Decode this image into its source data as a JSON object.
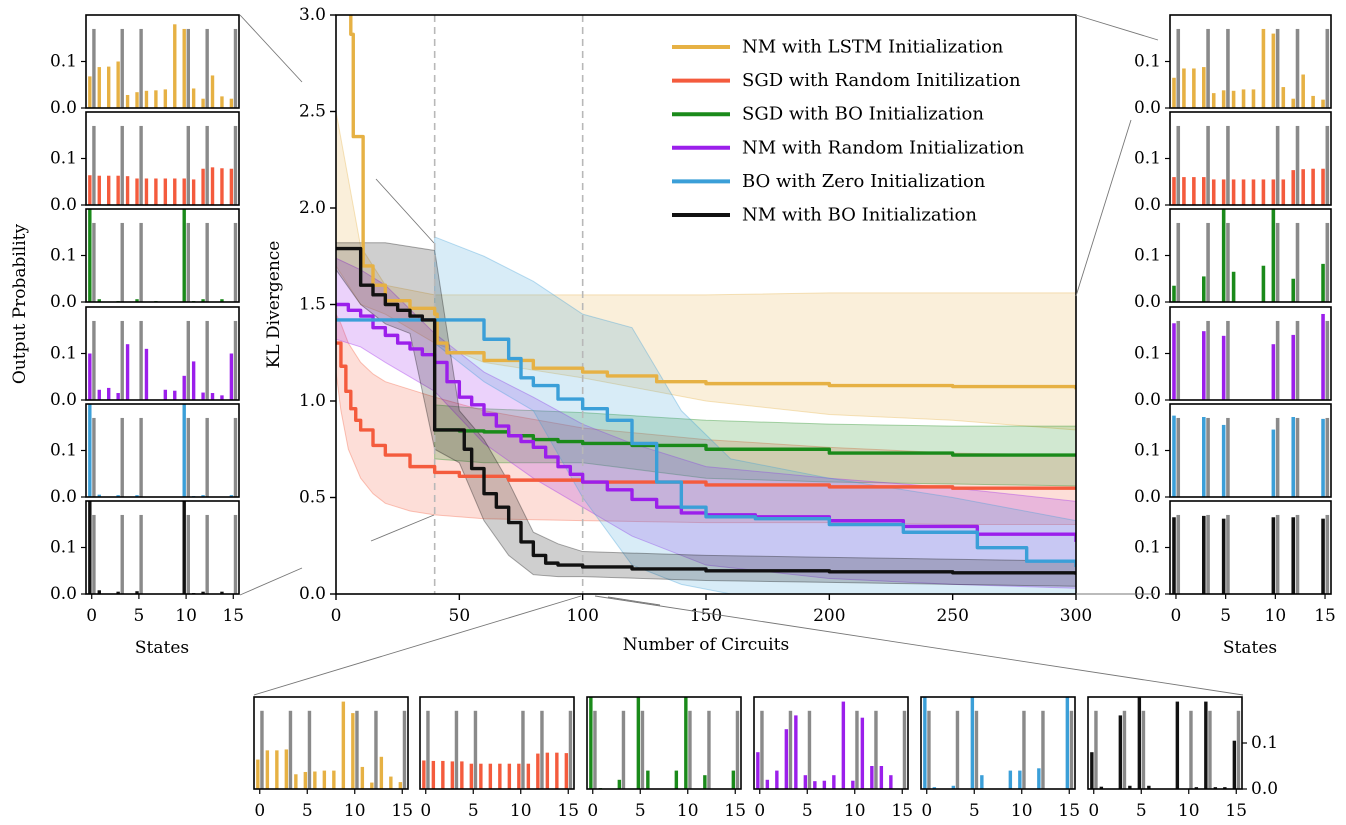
{
  "chart_data": [
    {
      "type": "line",
      "panel": "main",
      "xlabel": "Number of Circuits",
      "ylabel": "KL Divergence",
      "xlim": [
        0,
        300
      ],
      "ylim": [
        0,
        3.0
      ],
      "xticks": [
        "0",
        "50",
        "100",
        "150",
        "200",
        "250",
        "300"
      ],
      "yticks": [
        "0.0",
        "0.5",
        "1.0",
        "1.5",
        "2.0",
        "2.5",
        "3.0"
      ],
      "xtick_values": [
        0,
        50,
        100,
        150,
        200,
        250,
        300
      ],
      "ytick_values": [
        0,
        0.5,
        1.0,
        1.5,
        2.0,
        2.5,
        3.0
      ],
      "vlines": [
        40,
        100
      ],
      "legend_position": "top-right",
      "grid": false,
      "series": [
        {
          "name": "NM with LSTM Initialization",
          "color": "#E6B144",
          "x": [
            0,
            5,
            6,
            7,
            8,
            10,
            11,
            15,
            20,
            30,
            40,
            41,
            45,
            60,
            80,
            100,
            110,
            130,
            150,
            200,
            250,
            300
          ],
          "y": [
            3.2,
            3.2,
            2.9,
            2.37,
            2.37,
            2.37,
            1.7,
            1.6,
            1.52,
            1.48,
            1.45,
            1.3,
            1.25,
            1.21,
            1.17,
            1.15,
            1.13,
            1.1,
            1.09,
            1.08,
            1.075,
            1.06
          ],
          "band_x": [
            0,
            10,
            20,
            40,
            60,
            100,
            150,
            200,
            250,
            300
          ],
          "band_low": [
            1.7,
            1.5,
            1.45,
            1.3,
            1.2,
            1.12,
            1.0,
            0.93,
            0.9,
            0.85
          ],
          "band_high": [
            2.5,
            1.8,
            1.6,
            1.55,
            1.55,
            1.55,
            1.55,
            1.56,
            1.56,
            1.56
          ]
        },
        {
          "name": "SGD with Random Initilization",
          "color": "#F45B3D",
          "x": [
            0,
            2,
            4,
            6,
            8,
            10,
            15,
            20,
            30,
            40,
            50,
            70,
            100,
            150,
            200,
            250,
            300
          ],
          "y": [
            1.3,
            1.18,
            1.05,
            0.96,
            0.9,
            0.85,
            0.77,
            0.72,
            0.66,
            0.63,
            0.61,
            0.59,
            0.58,
            0.565,
            0.555,
            0.548,
            0.542
          ],
          "band_x": [
            0,
            2,
            5,
            10,
            15,
            20,
            30,
            40,
            60,
            100,
            150,
            200,
            250,
            300
          ],
          "band_low": [
            1.15,
            0.95,
            0.75,
            0.6,
            0.52,
            0.47,
            0.43,
            0.41,
            0.39,
            0.38,
            0.37,
            0.37,
            0.36,
            0.36
          ],
          "band_high": [
            1.45,
            1.4,
            1.3,
            1.2,
            1.14,
            1.1,
            1.06,
            1.02,
            0.95,
            0.86,
            0.8,
            0.76,
            0.73,
            0.72
          ]
        },
        {
          "name": "SGD with BO Initialization",
          "color": "#1A8A1A",
          "x": [
            40,
            45,
            50,
            60,
            70,
            80,
            90,
            100,
            120,
            150,
            200,
            250,
            300
          ],
          "y": [
            0.85,
            0.85,
            0.845,
            0.84,
            0.82,
            0.8,
            0.79,
            0.78,
            0.77,
            0.75,
            0.73,
            0.72,
            0.715
          ],
          "band_x": [
            40,
            60,
            100,
            150,
            200,
            250,
            300
          ],
          "band_low": [
            0.7,
            0.68,
            0.68,
            0.6,
            0.58,
            0.57,
            0.56
          ],
          "band_high": [
            0.98,
            0.96,
            0.94,
            0.9,
            0.88,
            0.87,
            0.87
          ]
        },
        {
          "name": "NM with Random Initialization",
          "color": "#9B1FEB",
          "x": [
            0,
            5,
            10,
            15,
            20,
            25,
            30,
            35,
            40,
            45,
            50,
            55,
            60,
            65,
            70,
            75,
            80,
            85,
            90,
            95,
            100,
            110,
            120,
            130,
            140,
            150,
            170,
            200,
            230,
            260,
            300
          ],
          "y": [
            1.5,
            1.47,
            1.44,
            1.38,
            1.34,
            1.3,
            1.27,
            1.24,
            1.2,
            1.1,
            1.02,
            0.98,
            0.93,
            0.87,
            0.82,
            0.79,
            0.76,
            0.71,
            0.66,
            0.62,
            0.58,
            0.54,
            0.49,
            0.45,
            0.42,
            0.41,
            0.4,
            0.38,
            0.35,
            0.31,
            0.27
          ],
          "band_x": [
            0,
            10,
            20,
            40,
            60,
            80,
            100,
            120,
            150,
            200,
            250,
            300
          ],
          "band_low": [
            1.32,
            1.28,
            1.2,
            1.05,
            0.78,
            0.6,
            0.45,
            0.3,
            0.15,
            0.08,
            0.05,
            0.03
          ],
          "band_high": [
            1.74,
            1.68,
            1.6,
            1.35,
            1.15,
            1.02,
            0.88,
            0.78,
            0.66,
            0.6,
            0.55,
            0.48
          ]
        },
        {
          "name": "BO with Zero Initialization",
          "color": "#3B9FD8",
          "x": [
            0,
            40,
            40,
            60,
            60,
            70,
            75,
            80,
            90,
            100,
            110,
            120,
            130,
            140,
            150,
            170,
            200,
            230,
            260,
            280,
            300
          ],
          "y": [
            1.42,
            1.42,
            1.42,
            1.42,
            1.32,
            1.22,
            1.12,
            1.08,
            1.01,
            0.96,
            0.9,
            0.78,
            0.58,
            0.45,
            0.4,
            0.39,
            0.36,
            0.32,
            0.24,
            0.17,
            0.14
          ],
          "band_x": [
            40,
            60,
            80,
            100,
            120,
            140,
            160,
            200,
            250,
            300
          ],
          "band_low": [
            1.3,
            1.1,
            0.95,
            0.5,
            0.15,
            0.05,
            0.0,
            0.0,
            0.0,
            0.0
          ],
          "band_high": [
            1.85,
            1.75,
            1.62,
            1.45,
            1.38,
            0.95,
            0.7,
            0.6,
            0.5,
            0.38
          ]
        },
        {
          "name": "NM with BO Initialization",
          "color": "#111111",
          "x": [
            0,
            10,
            10,
            15,
            20,
            25,
            30,
            35,
            40,
            40,
            45,
            50,
            52,
            55,
            60,
            65,
            70,
            75,
            80,
            85,
            90,
            100,
            120,
            150,
            200,
            250,
            300
          ],
          "y": [
            1.79,
            1.79,
            1.6,
            1.55,
            1.5,
            1.47,
            1.44,
            1.42,
            1.4,
            0.85,
            0.85,
            0.85,
            0.75,
            0.65,
            0.52,
            0.45,
            0.37,
            0.27,
            0.2,
            0.16,
            0.15,
            0.14,
            0.13,
            0.12,
            0.115,
            0.11,
            0.1
          ],
          "band_x": [
            0,
            10,
            20,
            30,
            40,
            50,
            60,
            70,
            80,
            90,
            100,
            150,
            200,
            250,
            300
          ],
          "band_low": [
            1.68,
            1.5,
            1.4,
            1.35,
            0.75,
            0.68,
            0.38,
            0.2,
            0.1,
            0.09,
            0.09,
            0.07,
            0.06,
            0.05,
            0.04
          ],
          "band_high": [
            1.82,
            1.82,
            1.82,
            1.8,
            1.78,
            0.95,
            0.8,
            0.58,
            0.32,
            0.26,
            0.22,
            0.2,
            0.19,
            0.18,
            0.17
          ]
        }
      ]
    },
    {
      "type": "bar",
      "panel": "left insets (0 circuits)",
      "ylabel": "Output Probability",
      "xlabel": "States",
      "xticks": [
        "0",
        "5",
        "10",
        "15"
      ],
      "yticks": [
        "0.0",
        "0.1"
      ],
      "ylim": [
        0,
        0.2
      ],
      "target": [
        0.17,
        0,
        0,
        0.17,
        0,
        0.17,
        0,
        0,
        0,
        0,
        0.17,
        0,
        0.17,
        0,
        0,
        0.17
      ],
      "series": [
        {
          "name": "NM with LSTM Initialization",
          "color": "#E6B144",
          "values": [
            0.068,
            0.088,
            0.089,
            0.1,
            0.028,
            0.034,
            0.037,
            0.038,
            0.04,
            0.18,
            0.17,
            0.042,
            0.02,
            0.07,
            0.025,
            0.02
          ]
        },
        {
          "name": "SGD with Random Initilization",
          "color": "#F45B3D",
          "values": [
            0.064,
            0.063,
            0.063,
            0.063,
            0.062,
            0.057,
            0.057,
            0.057,
            0.057,
            0.057,
            0.057,
            0.055,
            0.078,
            0.081,
            0.079,
            0.078
          ]
        },
        {
          "name": "SGD with BO Initialization",
          "color": "#1A8A1A",
          "values": [
            0.2,
            0.006,
            0.0,
            0.002,
            0.0,
            0.006,
            0.0,
            0.002,
            0.0,
            0.0,
            0.2,
            0.002,
            0.006,
            0.0,
            0.006,
            0.0
          ]
        },
        {
          "name": "NM with Random Initialization",
          "color": "#9B1FEB",
          "values": [
            0.1,
            0.022,
            0.026,
            0.015,
            0.12,
            0.0,
            0.11,
            0.0,
            0.022,
            0.02,
            0.052,
            0.083,
            0.016,
            0.015,
            0.01,
            0.1
          ]
        },
        {
          "name": "BO with Zero Initialization",
          "color": "#3B9FD8",
          "values": [
            0.2,
            0.005,
            0.0,
            0.004,
            0.0,
            0.004,
            0.0,
            0.0,
            0.0,
            0.0,
            0.2,
            0.002,
            0.004,
            0.0,
            0.0,
            0.004
          ]
        },
        {
          "name": "NM with BO Initialization",
          "color": "#111111",
          "values": [
            0.2,
            0.008,
            0.0,
            0.005,
            0.0,
            0.006,
            0.0,
            0.0,
            0.0,
            0.0,
            0.2,
            0.002,
            0.005,
            0.0,
            0.005,
            0.0
          ]
        }
      ]
    },
    {
      "type": "bar",
      "panel": "bottom insets (100 circuits)",
      "xticks": [
        "0",
        "5",
        "10",
        "15"
      ],
      "yticks": [
        "0.0",
        "0.1"
      ],
      "ylim": [
        0,
        0.2
      ],
      "target": [
        0.17,
        0,
        0,
        0.17,
        0,
        0.17,
        0,
        0,
        0,
        0,
        0.17,
        0,
        0.17,
        0,
        0,
        0.17
      ],
      "series": [
        {
          "name": "NM with LSTM Initialization",
          "color": "#E6B144",
          "values": [
            0.064,
            0.084,
            0.084,
            0.086,
            0.032,
            0.037,
            0.038,
            0.04,
            0.04,
            0.19,
            0.165,
            0.048,
            0.014,
            0.07,
            0.027,
            0.015
          ]
        },
        {
          "name": "SGD with Random Initilization",
          "color": "#F45B3D",
          "values": [
            0.062,
            0.061,
            0.061,
            0.06,
            0.06,
            0.055,
            0.055,
            0.055,
            0.055,
            0.055,
            0.055,
            0.055,
            0.077,
            0.079,
            0.079,
            0.078
          ]
        },
        {
          "name": "SGD with BO Initialization",
          "color": "#1A8A1A",
          "values": [
            0.2,
            0.002,
            0.0,
            0.02,
            0.0,
            0.2,
            0.04,
            0.0,
            0.0,
            0.04,
            0.2,
            0.0,
            0.03,
            0.0,
            0.0,
            0.04
          ]
        },
        {
          "name": "NM with Random Initialization",
          "color": "#9B1FEB",
          "values": [
            0.08,
            0.02,
            0.04,
            0.13,
            0.16,
            0.03,
            0.017,
            0.018,
            0.03,
            0.19,
            0.018,
            0.155,
            0.05,
            0.05,
            0.03,
            0.0
          ]
        },
        {
          "name": "BO with Zero Initialization",
          "color": "#3B9FD8",
          "values": [
            0.2,
            0.004,
            0.0,
            0.007,
            0.0,
            0.2,
            0.03,
            0.0,
            0.0,
            0.04,
            0.04,
            0.0,
            0.045,
            0.0,
            0.0,
            0.2
          ]
        },
        {
          "name": "NM with BO Initialization",
          "color": "#111111",
          "values": [
            0.08,
            0.005,
            0.0,
            0.16,
            0.007,
            0.2,
            0.007,
            0.0,
            0.0,
            0.19,
            0.0,
            0.004,
            0.19,
            0.004,
            0.004,
            0.105
          ]
        }
      ]
    },
    {
      "type": "bar",
      "panel": "right insets (300 circuits)",
      "xlabel": "States",
      "xticks": [
        "0",
        "5",
        "10",
        "15"
      ],
      "yticks": [
        "0.0",
        "0.1"
      ],
      "ylim": [
        0,
        0.2
      ],
      "target": [
        0.17,
        0,
        0,
        0.17,
        0,
        0.17,
        0,
        0,
        0,
        0,
        0.17,
        0,
        0.17,
        0,
        0,
        0.17
      ],
      "series": [
        {
          "name": "NM with LSTM Initialization",
          "color": "#E6B144",
          "values": [
            0.065,
            0.085,
            0.085,
            0.088,
            0.032,
            0.038,
            0.037,
            0.04,
            0.04,
            0.17,
            0.16,
            0.045,
            0.02,
            0.072,
            0.026,
            0.018
          ]
        },
        {
          "name": "SGD with Random Initilization",
          "color": "#F45B3D",
          "values": [
            0.06,
            0.06,
            0.06,
            0.06,
            0.055,
            0.055,
            0.055,
            0.055,
            0.055,
            0.055,
            0.055,
            0.055,
            0.075,
            0.077,
            0.078,
            0.078
          ]
        },
        {
          "name": "SGD with BO Initialization",
          "color": "#1A8A1A",
          "values": [
            0.035,
            0.0,
            0.0,
            0.055,
            0.0,
            0.2,
            0.065,
            0.0,
            0.0,
            0.078,
            0.2,
            0.0,
            0.05,
            0.0,
            0.0,
            0.082
          ]
        },
        {
          "name": "NM with Random Initialization",
          "color": "#9B1FEB",
          "values": [
            0.165,
            0.0,
            0.0,
            0.148,
            0.0,
            0.138,
            0.0,
            0.0,
            0.0,
            0.0,
            0.12,
            0.0,
            0.14,
            0.0,
            0.0,
            0.185
          ]
        },
        {
          "name": "BO with Zero Initialization",
          "color": "#3B9FD8",
          "values": [
            0.175,
            0.0,
            0.0,
            0.172,
            0.0,
            0.155,
            0.0,
            0.0,
            0.0,
            0.0,
            0.145,
            0.0,
            0.172,
            0.0,
            0.0,
            0.168
          ]
        },
        {
          "name": "NM with BO Initialization",
          "color": "#111111",
          "values": [
            0.165,
            0.0,
            0.0,
            0.168,
            0.0,
            0.162,
            0.0,
            0.0,
            0.0,
            0.0,
            0.165,
            0.0,
            0.165,
            0.0,
            0.0,
            0.162
          ]
        }
      ]
    }
  ]
}
